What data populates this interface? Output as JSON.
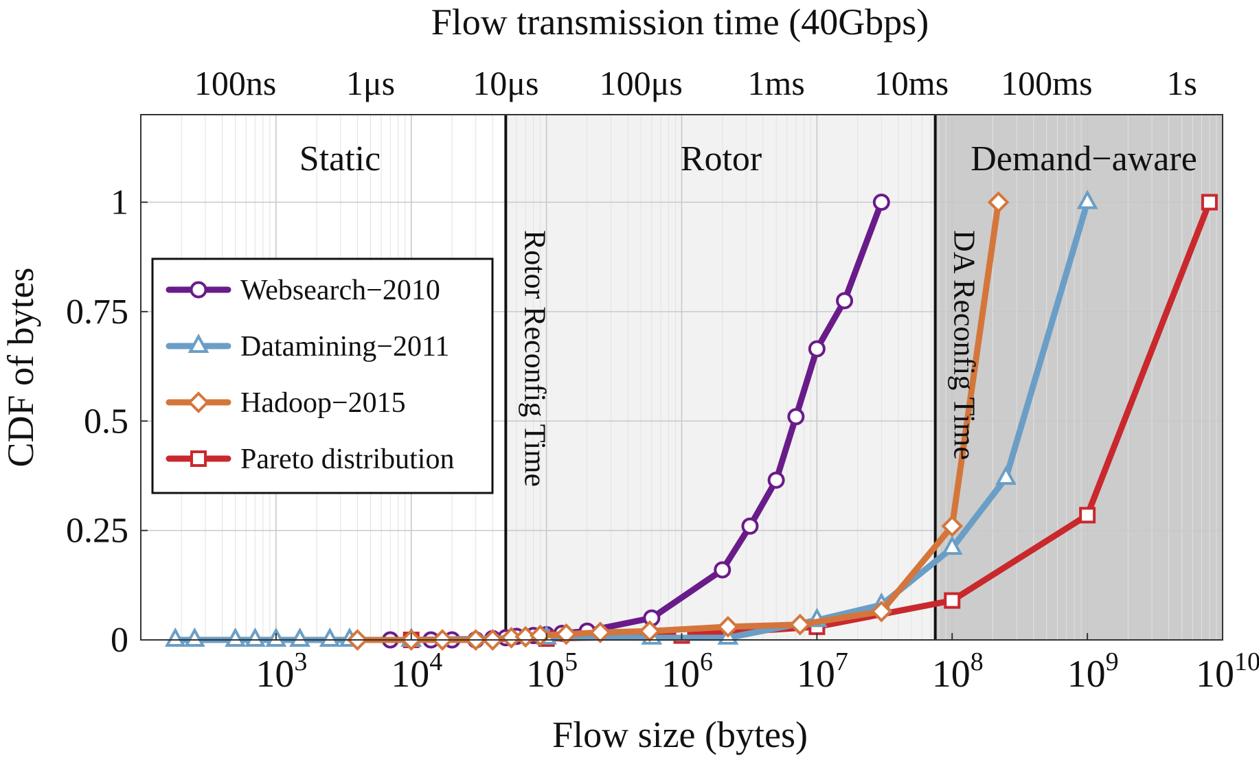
{
  "chart_data": {
    "type": "line",
    "xlabel": "Flow size (bytes)",
    "ylabel": "CDF of bytes",
    "top_axis_label": "Flow transmission time (40Gbps)",
    "x_scale": "log",
    "xlim": [
      100,
      10000000000
    ],
    "ylim": [
      0,
      1.2
    ],
    "grid": true,
    "legend_position": "left",
    "x_tick_labels": [
      {
        "value": 1000,
        "base": "10",
        "exp": "3"
      },
      {
        "value": 10000,
        "base": "10",
        "exp": "4"
      },
      {
        "value": 100000,
        "base": "10",
        "exp": "5"
      },
      {
        "value": 1000000,
        "base": "10",
        "exp": "6"
      },
      {
        "value": 10000000,
        "base": "10",
        "exp": "7"
      },
      {
        "value": 100000000,
        "base": "10",
        "exp": "8"
      },
      {
        "value": 1000000000,
        "base": "10",
        "exp": "9"
      },
      {
        "value": 10000000000,
        "base": "10",
        "exp": "10"
      }
    ],
    "y_tick_labels": [
      {
        "value": 0,
        "label": "0"
      },
      {
        "value": 0.25,
        "label": "0.25"
      },
      {
        "value": 0.5,
        "label": "0.5"
      },
      {
        "value": 0.75,
        "label": "0.75"
      },
      {
        "value": 1,
        "label": "1"
      }
    ],
    "top_tick_labels": [
      {
        "bytes": 500,
        "label": "100ns"
      },
      {
        "bytes": 5000,
        "label": "1μs"
      },
      {
        "bytes": 50000,
        "label": "10μs"
      },
      {
        "bytes": 500000,
        "label": "100μs"
      },
      {
        "bytes": 5000000,
        "label": "1ms"
      },
      {
        "bytes": 50000000,
        "label": "10ms"
      },
      {
        "bytes": 500000000,
        "label": "100ms"
      },
      {
        "bytes": 5000000000,
        "label": "1s"
      }
    ],
    "regions": [
      {
        "label": "Static",
        "x_start": 100,
        "x_end": 50000,
        "shade": "#ffffff"
      },
      {
        "label": "Rotor",
        "x_start": 50000,
        "x_end": 75000000,
        "shade": "#f2f2f2"
      },
      {
        "label": "Demand−aware",
        "x_start": 75000000,
        "x_end": 10000000000,
        "shade": "#cccccc"
      }
    ],
    "vertical_lines": [
      {
        "x": 50000,
        "label": "Rotor Reconfig Time"
      },
      {
        "x": 75000000,
        "label": "DA Reconfig Time"
      }
    ],
    "series": [
      {
        "name": "Websearch−2010",
        "color": "#6a1b8a",
        "marker": "circle",
        "x": [
          7000,
          10000,
          14000,
          20000,
          30000,
          40000,
          50000,
          60000,
          80000,
          100000,
          130000,
          200000,
          600000,
          2000000,
          3200000,
          5000000,
          7000000,
          10000000,
          16000000,
          30000000
        ],
        "y": [
          0,
          0,
          0,
          0,
          0,
          0.003,
          0.005,
          0.008,
          0.01,
          0.012,
          0.015,
          0.02,
          0.05,
          0.16,
          0.26,
          0.365,
          0.51,
          0.665,
          0.775,
          1.0
        ]
      },
      {
        "name": "Datamining−2011",
        "color": "#6a9ec6",
        "marker": "triangle",
        "x": [
          180,
          250,
          500,
          700,
          1000,
          1500,
          2500,
          3500,
          10000,
          100000,
          600000,
          2200000,
          10000000,
          30000000,
          100000000,
          250000000,
          1000000000
        ],
        "y": [
          0,
          0,
          0,
          0,
          0,
          0,
          0,
          0,
          0,
          0.005,
          0.005,
          0.005,
          0.045,
          0.08,
          0.21,
          0.37,
          1.0
        ]
      },
      {
        "name": "Hadoop−2015",
        "color": "#d4763b",
        "marker": "diamond",
        "x": [
          4000,
          10000,
          17000,
          30000,
          40000,
          55000,
          70000,
          90000,
          140000,
          250000,
          580000,
          2200000,
          7500000,
          30000000,
          100000000,
          220000000
        ],
        "y": [
          0,
          0,
          0,
          0,
          0,
          0.005,
          0.007,
          0.01,
          0.013,
          0.017,
          0.02,
          0.03,
          0.035,
          0.065,
          0.26,
          1.0
        ]
      },
      {
        "name": "Pareto distribution",
        "color": "#c9282d",
        "marker": "square",
        "x": [
          10000,
          100000,
          1000000,
          10000000,
          100000000,
          1000000000,
          8000000000
        ],
        "y": [
          0,
          0.003,
          0.01,
          0.03,
          0.09,
          0.285,
          1.0
        ]
      }
    ]
  }
}
